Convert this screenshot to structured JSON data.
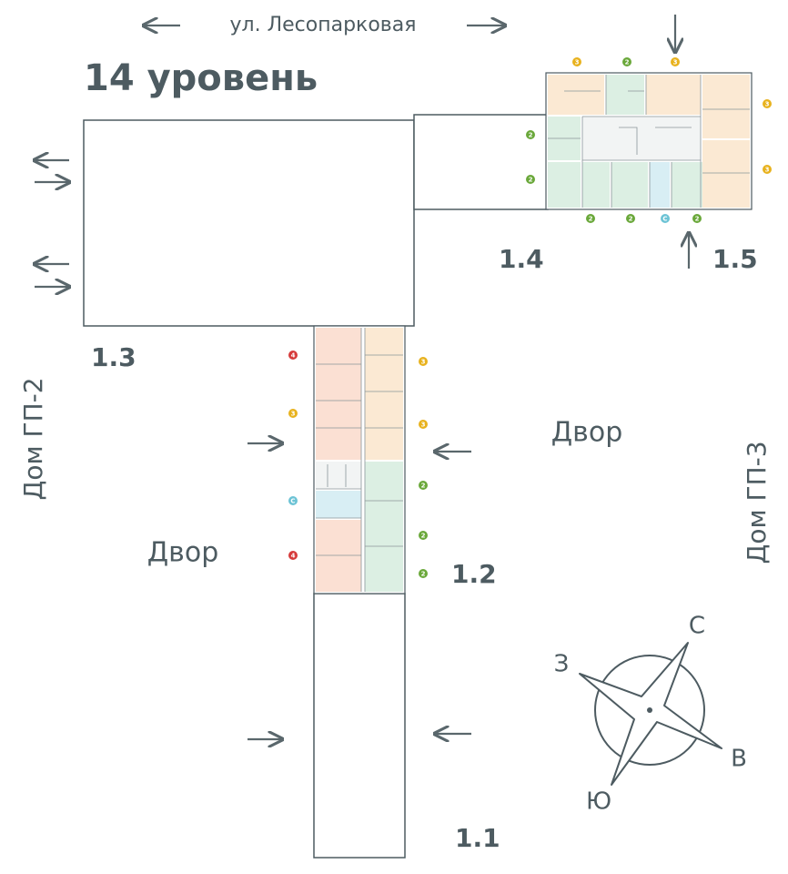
{
  "street": "ул. Лесопарковая",
  "level": "14 уровень",
  "sections": [
    "1.1",
    "1.2",
    "1.3",
    "1.4",
    "1.5"
  ],
  "neighbors": [
    "Дом ГП-2",
    "Дом ГП-3"
  ],
  "yards": [
    "Двор",
    "Двор"
  ],
  "compass": {
    "north": "С",
    "west": "З",
    "east": "В",
    "south": "Ю"
  },
  "badges": [
    {
      "label": "3",
      "color": "#e8b21e"
    },
    {
      "label": "2",
      "color": "#6aa83a"
    },
    {
      "label": "3",
      "color": "#e8b21e"
    },
    {
      "label": "3",
      "color": "#e8b21e"
    },
    {
      "label": "2",
      "color": "#6aa83a"
    },
    {
      "label": "2",
      "color": "#6aa83a"
    },
    {
      "label": "3",
      "color": "#e8b21e"
    },
    {
      "label": "2",
      "color": "#6aa83a"
    },
    {
      "label": "2",
      "color": "#6aa83a"
    },
    {
      "label": "С",
      "color": "#6cc3d5"
    },
    {
      "label": "2",
      "color": "#6aa83a"
    },
    {
      "label": "4",
      "color": "#d63b3b"
    },
    {
      "label": "3",
      "color": "#e8b21e"
    },
    {
      "label": "3",
      "color": "#e8b21e"
    },
    {
      "label": "3",
      "color": "#e8b21e"
    },
    {
      "label": "С",
      "color": "#6cc3d5"
    },
    {
      "label": "2",
      "color": "#6aa83a"
    },
    {
      "label": "4",
      "color": "#d63b3b"
    },
    {
      "label": "2",
      "color": "#6aa83a"
    },
    {
      "label": "2",
      "color": "#6aa83a"
    }
  ]
}
